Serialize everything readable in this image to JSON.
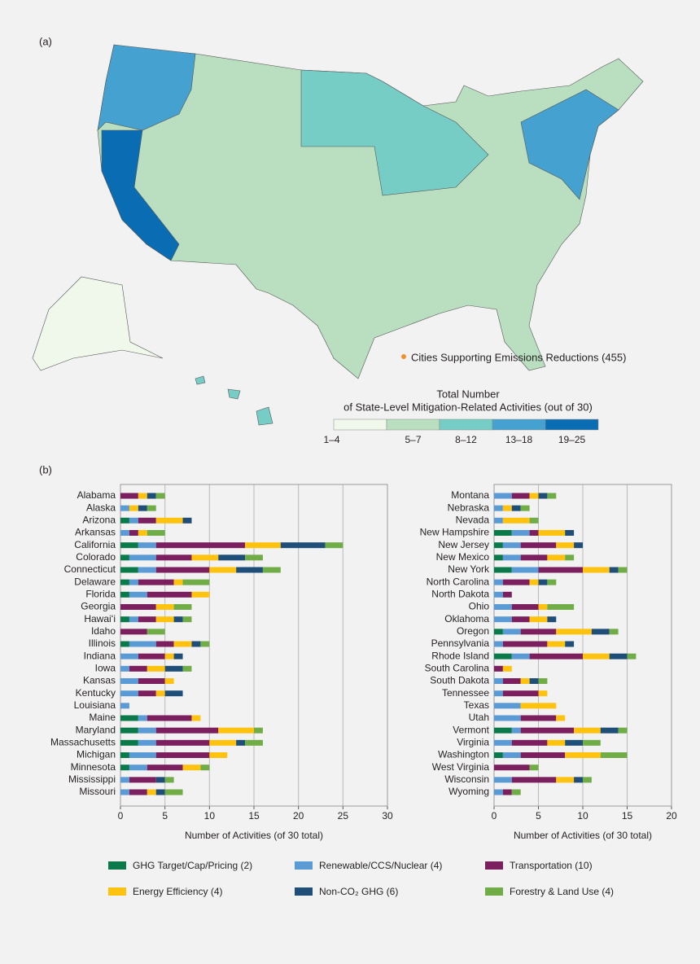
{
  "map": {
    "panel_label": "(a)",
    "cities_legend": "Cities Supporting Emissions Reductions (455)",
    "cities_color": "#f28e2b",
    "legend_title": [
      "Total Number",
      "of State-Level Mitigation-Related Activities (out of 30)"
    ],
    "bins": [
      {
        "label": "1–4",
        "color": "#f0f8ec"
      },
      {
        "label": "5–7",
        "color": "#b9dfc0"
      },
      {
        "label": "8–12",
        "color": "#76cdc6"
      },
      {
        "label": "13–18",
        "color": "#45a2d0"
      },
      {
        "label": "19–25",
        "color": "#0a6db3"
      }
    ]
  },
  "panel_b_label": "(b)",
  "chart_data": [
    {
      "type": "bar",
      "orientation": "horizontal",
      "stacked": true,
      "grid": true,
      "xlabel": "Number of Activities (of 30 total)",
      "xlim": [
        0,
        30
      ],
      "xticks": [
        0,
        5,
        10,
        15,
        20,
        25,
        30
      ],
      "categories": [
        "Alabama",
        "Alaska",
        "Arizona",
        "Arkansas",
        "California",
        "Colorado",
        "Connecticut",
        "Delaware",
        "Florida",
        "Georgia",
        "Hawaiʻi",
        "Idaho",
        "Illinois",
        "Indiana",
        "Iowa",
        "Kansas",
        "Kentucky",
        "Louisiana",
        "Maine",
        "Maryland",
        "Massachusetts",
        "Michigan",
        "Minnesota",
        "Mississippi",
        "Missouri"
      ],
      "series": [
        {
          "name": "GHG Target/Cap/Pricing (2)",
          "color": "#0b7a4b",
          "values": [
            0,
            0,
            1,
            0,
            2,
            1,
            2,
            1,
            1,
            0,
            1,
            0,
            1,
            0,
            0,
            0,
            0,
            0,
            2,
            2,
            2,
            1,
            1,
            0,
            0
          ]
        },
        {
          "name": "Renewable/CCS/Nuclear (4)",
          "color": "#5b9bd5",
          "values": [
            0,
            1,
            1,
            1,
            2,
            3,
            2,
            1,
            2,
            0,
            1,
            0,
            3,
            2,
            1,
            2,
            2,
            1,
            1,
            2,
            2,
            3,
            2,
            1,
            1
          ]
        },
        {
          "name": "Transportation (10)",
          "color": "#7b1f5e",
          "values": [
            2,
            0,
            2,
            1,
            10,
            4,
            6,
            4,
            5,
            4,
            2,
            3,
            2,
            3,
            2,
            3,
            2,
            0,
            5,
            7,
            6,
            6,
            4,
            3,
            2
          ]
        },
        {
          "name": "Energy Efficiency (4)",
          "color": "#ffc20e",
          "values": [
            1,
            1,
            3,
            1,
            4,
            3,
            3,
            1,
            2,
            2,
            2,
            0,
            2,
            1,
            2,
            1,
            1,
            0,
            1,
            4,
            3,
            2,
            2,
            0,
            1
          ]
        },
        {
          "name": "Non-CO₂ GHG (6)",
          "color": "#1f4e79",
          "values": [
            1,
            1,
            1,
            0,
            5,
            3,
            3,
            0,
            0,
            0,
            1,
            0,
            1,
            1,
            2,
            0,
            2,
            0,
            0,
            0,
            1,
            0,
            0,
            1,
            1
          ]
        },
        {
          "name": "Forestry & Land Use (4)",
          "color": "#70ad47",
          "values": [
            1,
            1,
            0,
            2,
            2,
            2,
            2,
            3,
            0,
            2,
            1,
            2,
            1,
            0,
            1,
            0,
            0,
            0,
            0,
            1,
            2,
            0,
            1,
            1,
            2
          ]
        }
      ]
    },
    {
      "type": "bar",
      "orientation": "horizontal",
      "stacked": true,
      "grid": true,
      "xlabel": "Number of Activities (of 30 total)",
      "xlim": [
        0,
        20
      ],
      "xticks": [
        0,
        5,
        10,
        15,
        20
      ],
      "categories": [
        "Montana",
        "Nebraska",
        "Nevada",
        "New Hampshire",
        "New Jersey",
        "New Mexico",
        "New York",
        "North Carolina",
        "North Dakota",
        "Ohio",
        "Oklahoma",
        "Oregon",
        "Pennsylvania",
        "Rhode Island",
        "South Carolina",
        "South Dakota",
        "Tennessee",
        "Texas",
        "Utah",
        "Vermont",
        "Virginia",
        "Washington",
        "West Virginia",
        "Wisconsin",
        "Wyoming"
      ],
      "series": [
        {
          "color": "#0b7a4b",
          "values": [
            0,
            0,
            0,
            2,
            1,
            1,
            2,
            0,
            0,
            0,
            0,
            1,
            0,
            2,
            0,
            0,
            0,
            0,
            0,
            2,
            0,
            1,
            0,
            0,
            0
          ]
        },
        {
          "color": "#5b9bd5",
          "values": [
            2,
            1,
            1,
            2,
            2,
            2,
            3,
            1,
            1,
            2,
            2,
            2,
            1,
            2,
            0,
            1,
            1,
            3,
            3,
            1,
            2,
            2,
            0,
            2,
            1
          ]
        },
        {
          "color": "#7b1f5e",
          "values": [
            2,
            0,
            0,
            1,
            4,
            3,
            5,
            3,
            1,
            3,
            2,
            4,
            5,
            6,
            1,
            2,
            4,
            0,
            4,
            6,
            4,
            5,
            4,
            5,
            1
          ]
        },
        {
          "color": "#ffc20e",
          "values": [
            1,
            1,
            3,
            3,
            2,
            2,
            3,
            1,
            0,
            1,
            2,
            4,
            2,
            3,
            1,
            1,
            1,
            4,
            1,
            3,
            2,
            4,
            0,
            2,
            0
          ]
        },
        {
          "color": "#1f4e79",
          "values": [
            1,
            1,
            0,
            1,
            1,
            0,
            1,
            1,
            0,
            0,
            1,
            2,
            1,
            2,
            0,
            1,
            0,
            0,
            0,
            2,
            2,
            0,
            0,
            1,
            0
          ]
        },
        {
          "color": "#70ad47",
          "values": [
            1,
            1,
            1,
            0,
            0,
            1,
            1,
            1,
            0,
            3,
            0,
            1,
            0,
            1,
            0,
            1,
            0,
            0,
            0,
            1,
            2,
            3,
            1,
            1,
            1
          ]
        }
      ]
    }
  ]
}
